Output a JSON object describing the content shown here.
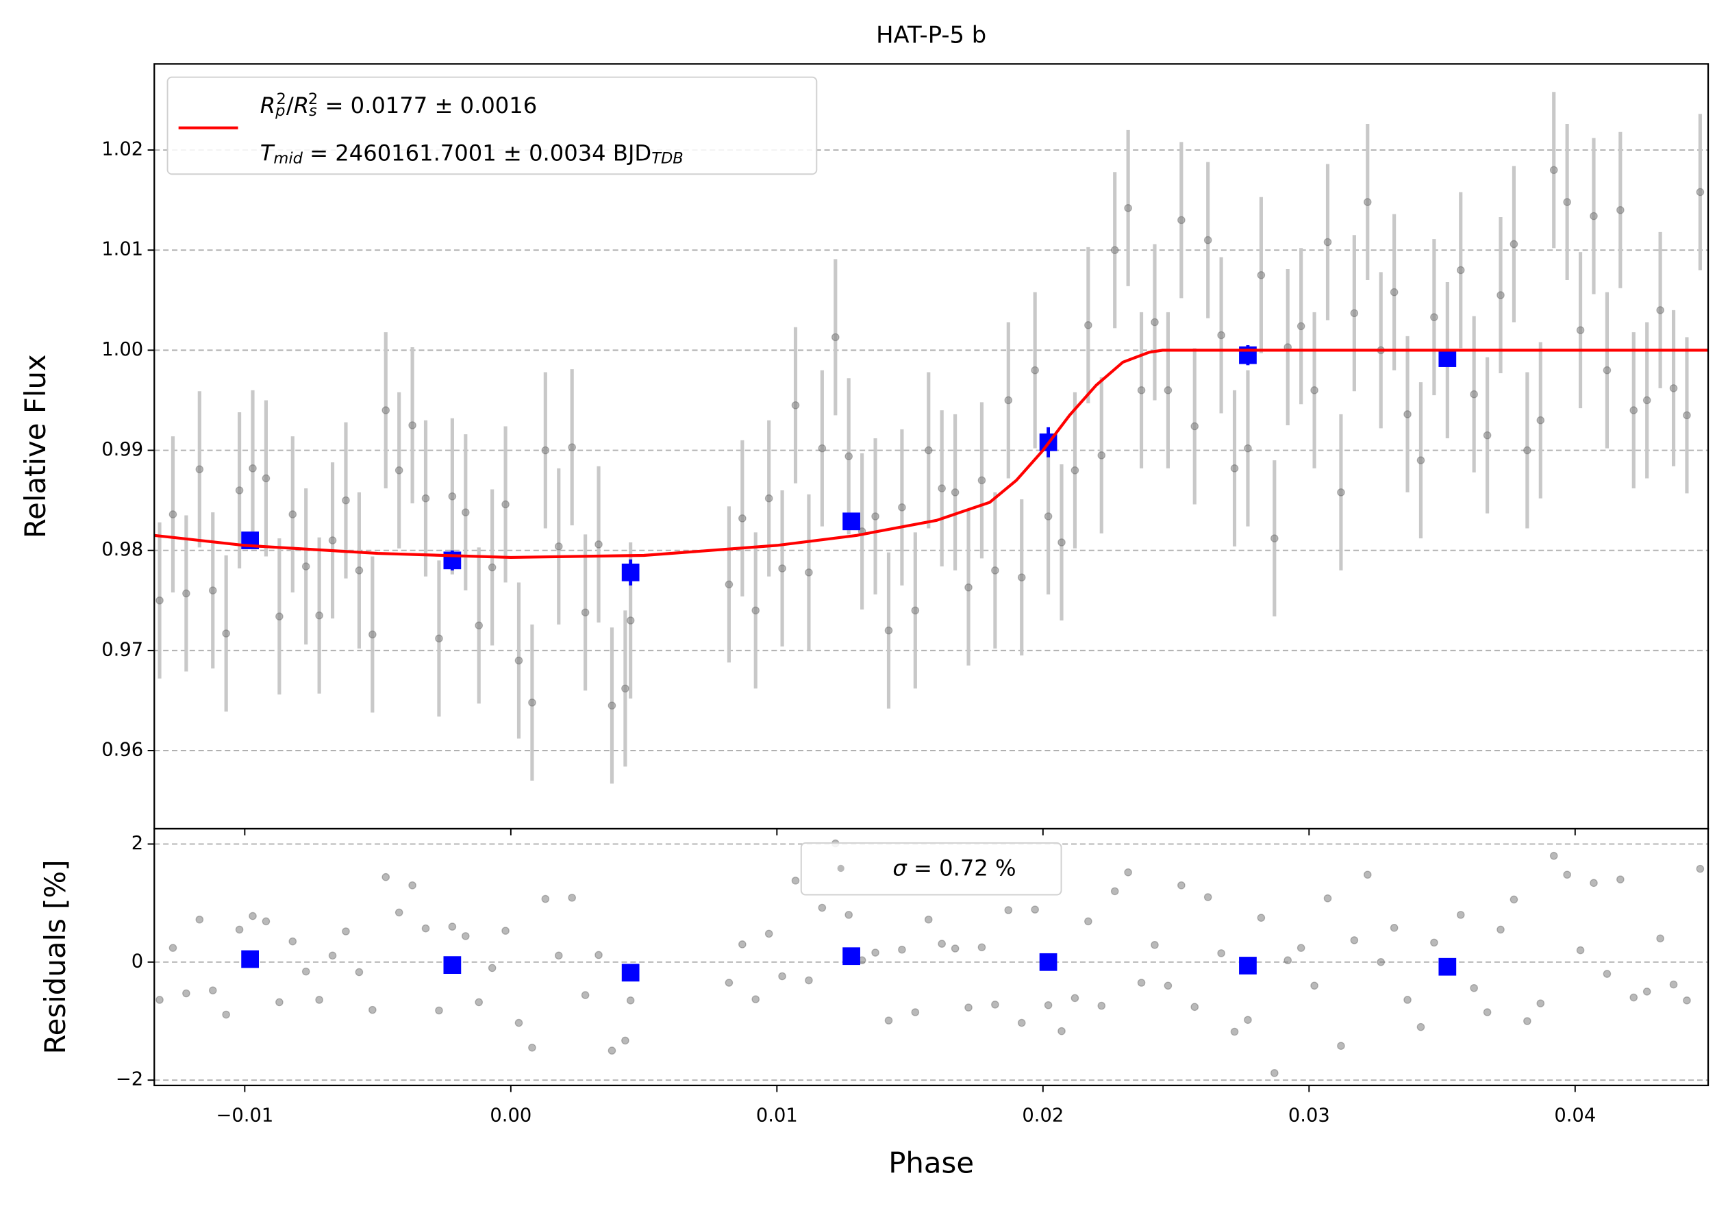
{
  "chart_data": [
    {
      "type": "scatter",
      "title": "HAT-P-5 b",
      "ylabel": "Relative Flux",
      "xlim": [
        -0.0134,
        0.045
      ],
      "ylim": [
        0.9522,
        1.0286
      ],
      "yticks": [
        0.96,
        0.97,
        0.98,
        0.99,
        {
          "value": 1.0,
          "label": "1.00"
        },
        1.01,
        1.02
      ],
      "grid": true,
      "legend": "upper left",
      "series": [
        {
          "color": "#808080",
          "yerr": 0.0078,
          "x": [
            -0.0132,
            -0.0127,
            -0.0122,
            -0.0117,
            -0.0112,
            -0.0107,
            -0.0102,
            -0.0097,
            -0.0092,
            -0.0087,
            -0.0082,
            -0.0077,
            -0.0072,
            -0.0067,
            -0.0062,
            -0.0057,
            -0.0052,
            -0.0047,
            -0.0042,
            -0.0037,
            -0.0032,
            -0.0027,
            -0.0022,
            -0.0017,
            -0.0012,
            -0.0007,
            -0.0002,
            0.0003,
            0.0008,
            0.0013,
            0.0018,
            0.0023,
            0.0028,
            0.0033,
            0.0038,
            0.0043,
            0.0045,
            0.0082,
            0.0087,
            0.0092,
            0.0097,
            0.0102,
            0.0107,
            0.0112,
            0.0117,
            0.0122,
            0.0127,
            0.0132,
            0.0137,
            0.0142,
            0.0147,
            0.0152,
            0.0157,
            0.0162,
            0.0167,
            0.0172,
            0.0177,
            0.0182,
            0.0187,
            0.0192,
            0.0197,
            0.0202,
            0.0207,
            0.0212,
            0.0217,
            0.0222,
            0.0227,
            0.0232,
            0.0237,
            0.0242,
            0.0247,
            0.0252,
            0.0257,
            0.0262,
            0.0267,
            0.0272,
            0.0277,
            0.0282,
            0.0287,
            0.0292,
            0.0297,
            0.0302,
            0.0307,
            0.0312,
            0.0317,
            0.0322,
            0.0327,
            0.0332,
            0.0337,
            0.0342,
            0.0347,
            0.0352,
            0.0357,
            0.0362,
            0.0367,
            0.0372,
            0.0377,
            0.0382,
            0.0387,
            0.0392,
            0.0397,
            0.0402,
            0.0407,
            0.0412,
            0.0417,
            0.0422,
            0.0427,
            0.0432,
            0.0437,
            0.0442,
            0.0447
          ],
          "values": [
            0.975,
            0.9836,
            0.9757,
            0.9881,
            0.976,
            0.9717,
            0.986,
            0.9882,
            0.9872,
            0.9734,
            0.9836,
            0.9784,
            0.9735,
            0.981,
            0.985,
            0.978,
            0.9716,
            0.994,
            0.988,
            0.9925,
            0.9852,
            0.9712,
            0.9854,
            0.9838,
            0.9725,
            0.9783,
            0.9846,
            0.969,
            0.9648,
            0.99,
            0.9804,
            0.9903,
            0.9738,
            0.9806,
            0.9645,
            0.9662,
            0.973,
            0.9766,
            0.9832,
            0.974,
            0.9852,
            0.9782,
            0.9945,
            0.9778,
            0.9902,
            1.0013,
            0.9894,
            0.9819,
            0.9834,
            0.972,
            0.9843,
            0.974,
            0.99,
            0.9862,
            0.9858,
            0.9763,
            0.987,
            0.978,
            0.995,
            0.9773,
            0.998,
            0.9834,
            0.9808,
            0.988,
            1.0025,
            0.9895,
            1.01,
            1.0142,
            0.996,
            1.0028,
            0.996,
            1.013,
            0.9924,
            1.011,
            1.0015,
            0.9882,
            0.9902,
            1.0075,
            0.9812,
            1.0003,
            1.0024,
            0.996,
            1.0108,
            0.9858,
            1.0037,
            1.0148,
            1.0,
            1.0058,
            0.9936,
            0.989,
            1.0033,
            0.999,
            1.008,
            0.9956,
            0.9915,
            1.0055,
            1.0106,
            0.99,
            0.993,
            1.018,
            1.0148,
            1.002,
            1.0134,
            0.998,
            1.014,
            0.994,
            0.995,
            1.004,
            0.9962,
            0.9935,
            1.0158
          ]
        },
        {
          "color": "#0000ff",
          "x": [
            -0.0098,
            -0.0022,
            0.0045,
            0.0128,
            0.0202,
            0.0277,
            0.0352
          ],
          "values": [
            0.981,
            0.979,
            0.9778,
            0.9829,
            0.9908,
            0.9995,
            0.9992
          ],
          "yerr": [
            0.0007,
            0.001,
            0.0013,
            0.0008,
            0.0015,
            0.001,
            0.0008
          ]
        },
        {
          "type": "line",
          "color": "#ff0000",
          "name": [
            [
              "R",
              "p",
              "2",
              "/",
              "R",
              "s",
              "2",
              " = 0.0177 ± 0.0016"
            ],
            [
              "T",
              "mid",
              " = 2460161.7001 ± 0.0034 BJD",
              "TDB"
            ]
          ],
          "x": [
            -0.0134,
            -0.01,
            -0.005,
            0.0,
            0.005,
            0.01,
            0.013,
            0.016,
            0.018,
            0.019,
            0.02,
            0.021,
            0.022,
            0.023,
            0.024,
            0.0245,
            0.045
          ],
          "values": [
            0.9815,
            0.9805,
            0.9797,
            0.9793,
            0.9795,
            0.9805,
            0.9815,
            0.983,
            0.9848,
            0.987,
            0.99,
            0.9935,
            0.9965,
            0.9988,
            0.9998,
            1.0,
            1.0
          ]
        }
      ]
    },
    {
      "type": "scatter",
      "xlabel": "Phase",
      "ylabel": "Residuals [%]",
      "xlim": [
        -0.0134,
        0.045
      ],
      "ylim": [
        -2.09,
        2.26
      ],
      "xticks": [
        {
          "value": -0.01,
          "label": "−0.01"
        },
        {
          "value": 0.0,
          "label": "0.00"
        },
        0.01,
        0.02,
        0.03,
        0.04
      ],
      "yticks": [
        {
          "value": -2,
          "label": "−2"
        },
        0,
        2
      ],
      "grid": true,
      "legend": "upper center",
      "series": [
        {
          "color": "#808080",
          "name": [
            "σ",
            " = 0.72 %"
          ],
          "x": [
            -0.0132,
            -0.0127,
            -0.0122,
            -0.0117,
            -0.0112,
            -0.0107,
            -0.0102,
            -0.0097,
            -0.0092,
            -0.0087,
            -0.0082,
            -0.0077,
            -0.0072,
            -0.0067,
            -0.0062,
            -0.0057,
            -0.0052,
            -0.0047,
            -0.0042,
            -0.0037,
            -0.0032,
            -0.0027,
            -0.0022,
            -0.0017,
            -0.0012,
            -0.0007,
            -0.0002,
            0.0003,
            0.0008,
            0.0013,
            0.0018,
            0.0023,
            0.0028,
            0.0033,
            0.0038,
            0.0043,
            0.0045,
            0.0082,
            0.0087,
            0.0092,
            0.0097,
            0.0102,
            0.0107,
            0.0112,
            0.0117,
            0.0122,
            0.0127,
            0.0132,
            0.0137,
            0.0142,
            0.0147,
            0.0152,
            0.0157,
            0.0162,
            0.0167,
            0.0172,
            0.0177,
            0.0182,
            0.0187,
            0.0192,
            0.0197,
            0.0202,
            0.0207,
            0.0212,
            0.0217,
            0.0222,
            0.0227,
            0.0232,
            0.0237,
            0.0242,
            0.0247,
            0.0252,
            0.0257,
            0.0262,
            0.0267,
            0.0272,
            0.0277,
            0.0282,
            0.0287,
            0.0292,
            0.0297,
            0.0302,
            0.0307,
            0.0312,
            0.0317,
            0.0322,
            0.0327,
            0.0332,
            0.0337,
            0.0342,
            0.0347,
            0.0352,
            0.0357,
            0.0362,
            0.0367,
            0.0372,
            0.0377,
            0.0382,
            0.0387,
            0.0392,
            0.0397,
            0.0402,
            0.0407,
            0.0412,
            0.0417,
            0.0422,
            0.0427,
            0.0432,
            0.0437,
            0.0442,
            0.0447
          ],
          "values": [
            -0.64,
            0.24,
            -0.53,
            0.72,
            -0.48,
            -0.89,
            0.55,
            0.78,
            0.69,
            -0.68,
            0.35,
            -0.16,
            -0.64,
            0.11,
            0.52,
            -0.17,
            -0.81,
            1.44,
            0.84,
            1.3,
            0.57,
            -0.82,
            0.6,
            0.44,
            -0.68,
            -0.1,
            0.53,
            -1.03,
            -1.45,
            1.07,
            0.11,
            1.09,
            -0.56,
            0.12,
            -1.5,
            -1.33,
            -0.65,
            -0.35,
            0.3,
            -0.63,
            0.48,
            -0.24,
            1.38,
            -0.31,
            0.92,
            2.01,
            0.8,
            0.03,
            0.16,
            -0.99,
            0.21,
            -0.85,
            0.72,
            0.31,
            0.23,
            -0.77,
            0.25,
            -0.72,
            0.88,
            -1.03,
            0.89,
            -0.73,
            -1.17,
            -0.61,
            0.69,
            -0.74,
            1.2,
            1.52,
            -0.35,
            0.29,
            -0.4,
            1.3,
            -0.76,
            1.1,
            0.15,
            -1.18,
            -0.98,
            0.75,
            -1.88,
            0.03,
            0.24,
            -0.4,
            1.08,
            -1.42,
            0.37,
            1.48,
            0.0,
            0.58,
            -0.64,
            -1.1,
            0.33,
            -0.1,
            0.8,
            -0.44,
            -0.85,
            0.55,
            1.06,
            -1.0,
            -0.7,
            1.8,
            1.48,
            0.2,
            1.34,
            -0.2,
            1.4,
            -0.6,
            -0.5,
            0.4,
            -0.38,
            -0.65,
            1.58
          ]
        },
        {
          "color": "#0000ff",
          "x": [
            -0.0098,
            -0.0022,
            0.0045,
            0.0128,
            0.0202,
            0.0277,
            0.0352
          ],
          "values": [
            0.05,
            -0.05,
            -0.18,
            0.1,
            0.0,
            -0.06,
            -0.08
          ]
        }
      ]
    }
  ]
}
